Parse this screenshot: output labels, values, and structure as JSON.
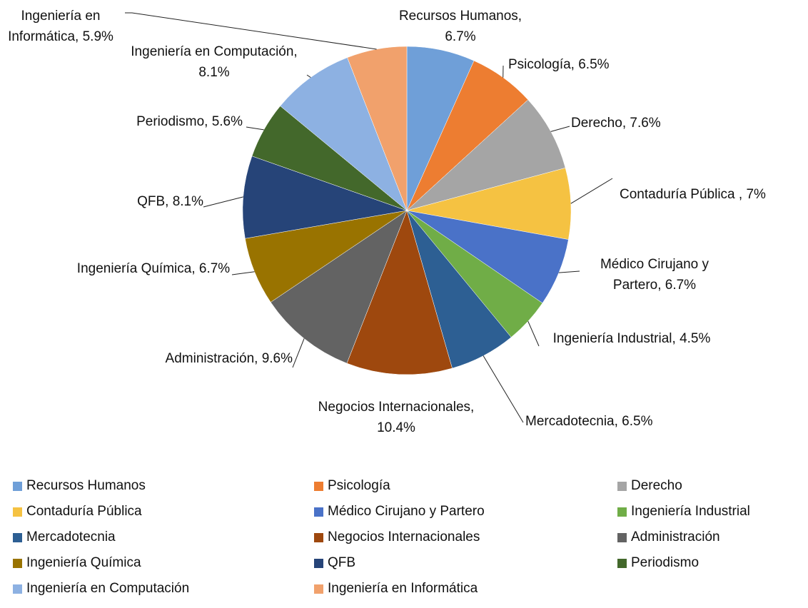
{
  "chart_data": {
    "type": "pie",
    "categories": [
      "Recursos Humanos",
      "Psicología",
      "Derecho",
      "Contaduría Pública",
      "Médico Cirujano y Partero",
      "Ingeniería Industrial",
      "Mercadotecnia",
      "Negocios Internacionales",
      "Administración",
      "Ingeniería Química",
      "QFB",
      "Periodismo",
      "Ingeniería en Computación",
      "Ingeniería en Informática"
    ],
    "values": [
      6.7,
      6.5,
      7.6,
      7,
      6.7,
      4.5,
      6.5,
      10.4,
      9.6,
      6.7,
      8.1,
      5.6,
      8.1,
      5.9
    ],
    "value_labels": [
      "Recursos Humanos, 6.7%",
      "Psicología, 6.5%",
      "Derecho, 7.6%",
      "Contaduría Pública , 7%",
      "Médico Cirujano y Partero, 6.7%",
      "Ingeniería Industrial, 4.5%",
      "Mercadotecnia, 6.5%",
      "Negocios Internacionales, 10.4%",
      "Administración, 9.6%",
      "Ingeniería Química, 6.7%",
      "QFB, 8.1%",
      "Periodismo, 5.6%",
      "Ingeniería en Computación, 8.1%",
      "Ingeniería en Informática, 5.9%"
    ],
    "colors": [
      "#6f9fd8",
      "#ed7d31",
      "#a5a5a5",
      "#f5c242",
      "#4a72c8",
      "#70ad47",
      "#2d5f93",
      "#9e480e",
      "#636363",
      "#997300",
      "#264478",
      "#43682b",
      "#8db1e2",
      "#f1a16c"
    ],
    "legend": "bottom"
  }
}
